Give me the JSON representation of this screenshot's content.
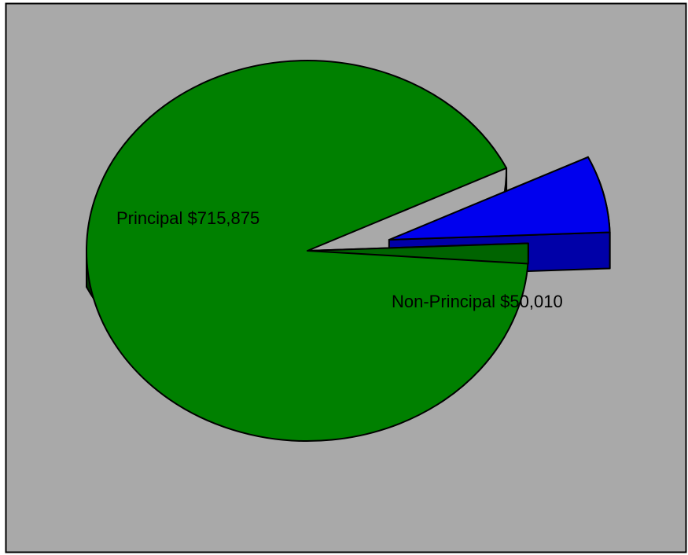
{
  "chart_data": {
    "type": "pie",
    "style": "3d-exploded",
    "legend": "none",
    "slices": [
      {
        "category": "Principal",
        "value": 715875,
        "label": "Principal $715,875",
        "color": "#008000"
      },
      {
        "category": "Non-Principal",
        "value": 50010,
        "label": "Non-Principal $50,010",
        "color": "#0000ee"
      }
    ],
    "exploded": "Non-Principal"
  },
  "colors": {
    "background": "#a9a9a9",
    "border": "#000000"
  }
}
